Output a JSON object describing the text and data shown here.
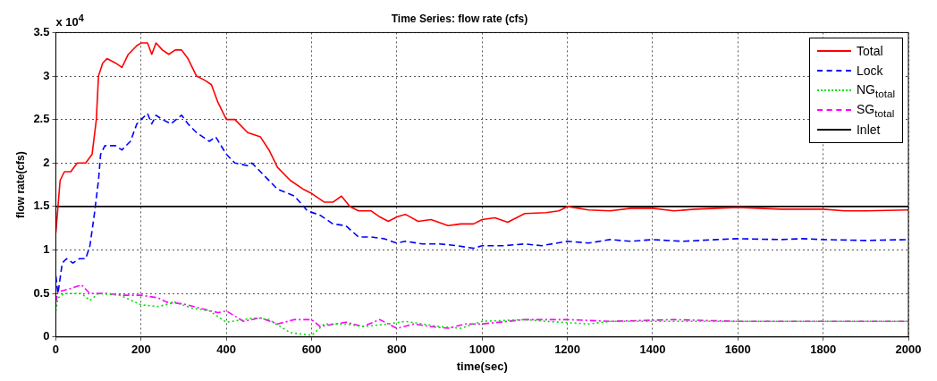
{
  "chart_data": {
    "type": "line",
    "title": "Time Series: flow rate (cfs)",
    "xlabel": "time(sec)",
    "ylabel": "flow rate(cfs)",
    "annotations": [
      "x 10$^{4}$"
    ],
    "xlim": [
      0,
      2000
    ],
    "xticks": [
      0,
      200,
      400,
      600,
      800,
      1000,
      1200,
      1400,
      1600,
      1800,
      2000
    ],
    "ylim": [
      0,
      3.5
    ],
    "yticks": [
      0,
      0.5,
      1,
      1.5,
      2,
      2.5,
      3,
      3.5
    ],
    "grid": true,
    "legend": "top right",
    "marker": "none",
    "series": [
      {
        "name": "Total",
        "color": "#ff0000",
        "line_style": "solid",
        "x": [
          0,
          5,
          10,
          20,
          35,
          50,
          70,
          85,
          95,
          100,
          110,
          120,
          140,
          155,
          170,
          190,
          200,
          215,
          225,
          235,
          250,
          265,
          280,
          295,
          310,
          330,
          350,
          365,
          380,
          400,
          420,
          450,
          480,
          500,
          520,
          550,
          580,
          600,
          630,
          650,
          670,
          690,
          710,
          740,
          760,
          780,
          800,
          820,
          850,
          880,
          920,
          950,
          980,
          1000,
          1030,
          1060,
          1100,
          1150,
          1180,
          1200,
          1250,
          1300,
          1350,
          1400,
          1450,
          1500,
          1600,
          1700,
          1800,
          1850,
          1900,
          2000
        ],
        "values": [
          1.2,
          1.5,
          1.8,
          1.9,
          1.9,
          2.0,
          2.0,
          2.1,
          2.5,
          3.0,
          3.15,
          3.2,
          3.15,
          3.1,
          3.25,
          3.35,
          3.38,
          3.38,
          3.25,
          3.38,
          3.3,
          3.25,
          3.3,
          3.3,
          3.2,
          3.0,
          2.95,
          2.9,
          2.7,
          2.5,
          2.5,
          2.35,
          2.3,
          2.15,
          1.95,
          1.8,
          1.7,
          1.65,
          1.55,
          1.55,
          1.62,
          1.5,
          1.45,
          1.45,
          1.38,
          1.33,
          1.38,
          1.41,
          1.33,
          1.35,
          1.28,
          1.3,
          1.3,
          1.35,
          1.37,
          1.32,
          1.42,
          1.43,
          1.45,
          1.5,
          1.46,
          1.45,
          1.48,
          1.48,
          1.45,
          1.47,
          1.49,
          1.47,
          1.47,
          1.45,
          1.45,
          1.46
        ]
      },
      {
        "name": "Lock",
        "color": "#0000ff",
        "line_style": "dashed",
        "x": [
          0,
          5,
          15,
          25,
          40,
          55,
          70,
          80,
          90,
          100,
          105,
          115,
          140,
          155,
          175,
          190,
          200,
          215,
          225,
          235,
          250,
          270,
          295,
          310,
          330,
          360,
          375,
          400,
          420,
          450,
          460,
          490,
          520,
          560,
          590,
          620,
          650,
          680,
          710,
          740,
          770,
          800,
          820,
          860,
          900,
          940,
          980,
          1000,
          1050,
          1100,
          1140,
          1200,
          1250,
          1300,
          1350,
          1400,
          1470,
          1550,
          1600,
          1700,
          1750,
          1800,
          1900,
          2000
        ],
        "values": [
          0.7,
          0.5,
          0.85,
          0.9,
          0.85,
          0.9,
          0.9,
          1.05,
          1.4,
          1.8,
          2.1,
          2.2,
          2.2,
          2.15,
          2.25,
          2.45,
          2.5,
          2.57,
          2.45,
          2.55,
          2.5,
          2.45,
          2.55,
          2.45,
          2.35,
          2.25,
          2.3,
          2.1,
          2.0,
          1.97,
          2.0,
          1.85,
          1.7,
          1.62,
          1.45,
          1.4,
          1.3,
          1.28,
          1.15,
          1.15,
          1.13,
          1.08,
          1.1,
          1.07,
          1.07,
          1.05,
          1.02,
          1.05,
          1.05,
          1.07,
          1.05,
          1.1,
          1.08,
          1.12,
          1.1,
          1.12,
          1.1,
          1.12,
          1.13,
          1.12,
          1.13,
          1.12,
          1.11,
          1.12
        ]
      },
      {
        "name": "NG$_{total}$",
        "color": "#00dd00",
        "line_style": "dotted",
        "x": [
          0,
          5,
          20,
          40,
          60,
          80,
          100,
          150,
          200,
          240,
          280,
          320,
          360,
          400,
          440,
          470,
          500,
          550,
          600,
          630,
          680,
          720,
          780,
          820,
          860,
          900,
          950,
          1000,
          1100,
          1150,
          1250,
          1300,
          1400,
          1600,
          1800,
          2000
        ],
        "values": [
          0.3,
          0.45,
          0.5,
          0.5,
          0.5,
          0.42,
          0.5,
          0.48,
          0.37,
          0.35,
          0.4,
          0.33,
          0.3,
          0.17,
          0.2,
          0.22,
          0.2,
          0.05,
          0.02,
          0.15,
          0.15,
          0.12,
          0.15,
          0.18,
          0.15,
          0.12,
          0.1,
          0.18,
          0.2,
          0.18,
          0.15,
          0.18,
          0.18,
          0.18,
          0.18,
          0.18
        ]
      },
      {
        "name": "SG$_{total}$",
        "color": "#ff00ff",
        "line_style": "dashdot",
        "x": [
          0,
          5,
          30,
          60,
          80,
          120,
          160,
          200,
          240,
          260,
          300,
          340,
          380,
          400,
          440,
          480,
          520,
          560,
          600,
          620,
          680,
          720,
          760,
          800,
          840,
          880,
          920,
          960,
          1000,
          1100,
          1200,
          1300,
          1450,
          1600,
          1800,
          2000
        ],
        "values": [
          0.4,
          0.52,
          0.55,
          0.6,
          0.5,
          0.5,
          0.48,
          0.48,
          0.45,
          0.4,
          0.38,
          0.33,
          0.28,
          0.3,
          0.18,
          0.22,
          0.15,
          0.2,
          0.2,
          0.12,
          0.17,
          0.12,
          0.2,
          0.1,
          0.15,
          0.12,
          0.1,
          0.15,
          0.15,
          0.2,
          0.2,
          0.18,
          0.2,
          0.18,
          0.18,
          0.18
        ]
      },
      {
        "name": "Inlet",
        "color": "#000000",
        "line_style": "solid",
        "x": [
          0,
          2000
        ],
        "values": [
          1.5,
          1.5
        ]
      }
    ]
  }
}
